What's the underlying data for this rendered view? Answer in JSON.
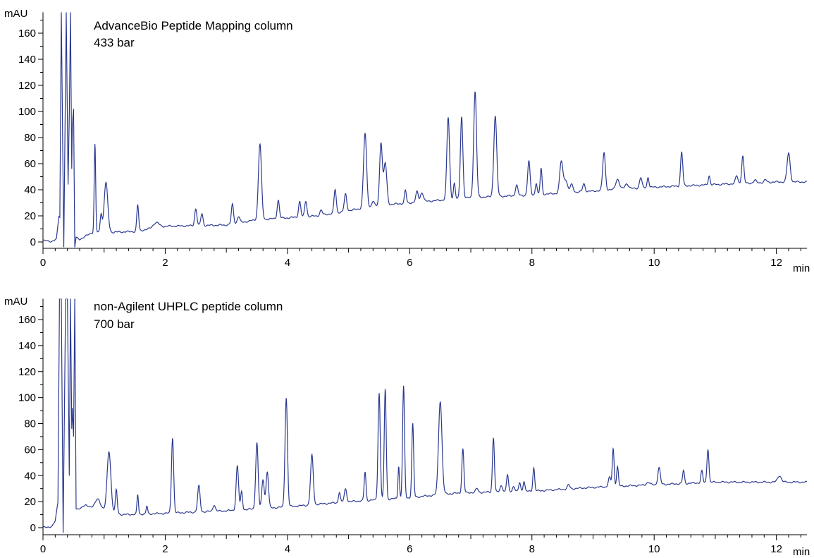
{
  "chart_data": [
    {
      "type": "line",
      "title": "AdvanceBio Peptide Mapping column",
      "subtitle": "433 bar",
      "xlabel": "min",
      "ylabel": "mAU",
      "xlim": [
        0,
        12.5
      ],
      "ylim": [
        -4,
        176
      ],
      "grid": false,
      "xticks": [
        0,
        2,
        4,
        6,
        8,
        10,
        12
      ],
      "xtick_labels": [
        "0",
        "2",
        "4",
        "6",
        "8",
        "10",
        "12"
      ],
      "yticks": [
        0,
        20,
        40,
        60,
        80,
        100,
        120,
        140,
        160
      ],
      "ytick_labels": [
        "0",
        "20",
        "40",
        "60",
        "80",
        "100",
        "120",
        "140",
        "160"
      ],
      "line_color": "#2b3990",
      "baseline": [
        [
          0,
          1
        ],
        [
          0.15,
          0.5
        ],
        [
          0.22,
          2
        ],
        [
          0.26,
          20
        ],
        [
          0.55,
          3
        ],
        [
          0.6,
          2
        ],
        [
          0.8,
          7
        ],
        [
          1.5,
          8
        ],
        [
          2,
          12
        ],
        [
          3,
          13
        ],
        [
          3.5,
          17
        ],
        [
          4.5,
          20
        ],
        [
          5,
          24
        ],
        [
          5.5,
          28
        ],
        [
          6,
          30
        ],
        [
          6.5,
          32
        ],
        [
          7,
          34
        ],
        [
          8,
          36
        ],
        [
          9,
          39
        ],
        [
          10,
          42
        ],
        [
          11,
          44
        ],
        [
          12,
          46
        ],
        [
          12.5,
          46
        ]
      ],
      "peaks": [
        [
          0.85,
          68,
          0.012
        ],
        [
          0.95,
          14,
          0.015
        ],
        [
          1.03,
          38,
          0.03
        ],
        [
          1.55,
          20,
          0.015
        ],
        [
          1.85,
          4,
          0.05
        ],
        [
          2.5,
          13,
          0.018
        ],
        [
          2.6,
          9,
          0.018
        ],
        [
          3.1,
          15,
          0.018
        ],
        [
          3.2,
          5,
          0.02
        ],
        [
          3.55,
          58,
          0.025
        ],
        [
          3.85,
          14,
          0.018
        ],
        [
          4.2,
          12,
          0.018
        ],
        [
          4.3,
          12,
          0.018
        ],
        [
          4.55,
          4,
          0.02
        ],
        [
          4.78,
          18,
          0.018
        ],
        [
          4.95,
          13,
          0.02
        ],
        [
          5.27,
          57,
          0.025
        ],
        [
          5.4,
          4,
          0.02
        ],
        [
          5.53,
          48,
          0.022
        ],
        [
          5.6,
          32,
          0.025
        ],
        [
          5.93,
          10,
          0.015
        ],
        [
          6.12,
          8,
          0.02
        ],
        [
          6.2,
          7,
          0.025
        ],
        [
          6.63,
          63,
          0.022
        ],
        [
          6.73,
          12,
          0.015
        ],
        [
          6.85,
          63,
          0.02
        ],
        [
          7.07,
          81,
          0.023
        ],
        [
          7.4,
          62,
          0.024
        ],
        [
          7.75,
          8,
          0.02
        ],
        [
          7.95,
          26,
          0.02
        ],
        [
          8.07,
          9,
          0.015
        ],
        [
          8.15,
          20,
          0.015
        ],
        [
          8.48,
          24,
          0.025
        ],
        [
          8.55,
          10,
          0.03
        ],
        [
          8.65,
          6,
          0.025
        ],
        [
          8.85,
          6,
          0.02
        ],
        [
          9.18,
          29,
          0.022
        ],
        [
          9.4,
          8,
          0.03
        ],
        [
          9.55,
          4,
          0.03
        ],
        [
          9.78,
          8,
          0.02
        ],
        [
          9.9,
          8,
          0.015
        ],
        [
          10.45,
          26,
          0.018
        ],
        [
          10.9,
          7,
          0.015
        ],
        [
          11.35,
          6,
          0.02
        ],
        [
          11.45,
          21,
          0.018
        ],
        [
          11.65,
          2,
          0.02
        ],
        [
          11.82,
          2,
          0.02
        ],
        [
          12.2,
          22,
          0.025
        ]
      ],
      "spikes": [
        [
          0.3,
          176
        ],
        [
          0.34,
          -4
        ],
        [
          0.38,
          176
        ],
        [
          0.41,
          44
        ],
        [
          0.43,
          96
        ],
        [
          0.45,
          176
        ],
        [
          0.47,
          56
        ],
        [
          0.48,
          90
        ],
        [
          0.5,
          102
        ],
        [
          0.52,
          -4
        ]
      ]
    },
    {
      "type": "line",
      "title": "non-Agilent UHPLC peptide column",
      "subtitle": "700 bar",
      "xlabel": "min",
      "ylabel": "mAU",
      "xlim": [
        0,
        12.5
      ],
      "ylim": [
        -4,
        176
      ],
      "grid": false,
      "xticks": [
        0,
        2,
        4,
        6,
        8,
        10,
        12
      ],
      "xtick_labels": [
        "0",
        "2",
        "4",
        "6",
        "8",
        "10",
        "12"
      ],
      "yticks": [
        0,
        20,
        40,
        60,
        80,
        100,
        120,
        140,
        160
      ],
      "ytick_labels": [
        "0",
        "20",
        "40",
        "60",
        "80",
        "100",
        "120",
        "140",
        "160"
      ],
      "line_color": "#2b3990",
      "baseline": [
        [
          0,
          0
        ],
        [
          0.15,
          1
        ],
        [
          0.2,
          5
        ],
        [
          0.26,
          25
        ],
        [
          0.55,
          14
        ],
        [
          0.7,
          17
        ],
        [
          0.9,
          15
        ],
        [
          1.3,
          10
        ],
        [
          2,
          11
        ],
        [
          3,
          13
        ],
        [
          4,
          16
        ],
        [
          5,
          20
        ],
        [
          6,
          23
        ],
        [
          6.6,
          26
        ],
        [
          7,
          27
        ],
        [
          8,
          28
        ],
        [
          9,
          31
        ],
        [
          10,
          33
        ],
        [
          11,
          35
        ],
        [
          12.5,
          35
        ]
      ],
      "peaks": [
        [
          0.9,
          7,
          0.04
        ],
        [
          1.08,
          46,
          0.03
        ],
        [
          1.2,
          18,
          0.015
        ],
        [
          1.55,
          15,
          0.012
        ],
        [
          1.7,
          6,
          0.012
        ],
        [
          2.12,
          58,
          0.018
        ],
        [
          2.55,
          20,
          0.02
        ],
        [
          2.8,
          5,
          0.02
        ],
        [
          3.18,
          34,
          0.02
        ],
        [
          3.25,
          14,
          0.015
        ],
        [
          3.5,
          51,
          0.02
        ],
        [
          3.6,
          22,
          0.02
        ],
        [
          3.67,
          28,
          0.02
        ],
        [
          3.98,
          84,
          0.02
        ],
        [
          4.4,
          38,
          0.022
        ],
        [
          4.85,
          8,
          0.015
        ],
        [
          4.95,
          10,
          0.02
        ],
        [
          5.27,
          22,
          0.015
        ],
        [
          5.5,
          82,
          0.018
        ],
        [
          5.6,
          85,
          0.016
        ],
        [
          5.82,
          25,
          0.012
        ],
        [
          5.9,
          86,
          0.016
        ],
        [
          6.05,
          57,
          0.015
        ],
        [
          6.5,
          72,
          0.028
        ],
        [
          6.87,
          34,
          0.016
        ],
        [
          7.1,
          3,
          0.02
        ],
        [
          7.37,
          42,
          0.016
        ],
        [
          7.5,
          5,
          0.02
        ],
        [
          7.6,
          13,
          0.016
        ],
        [
          7.7,
          4,
          0.02
        ],
        [
          7.8,
          7,
          0.015
        ],
        [
          7.87,
          8,
          0.015
        ],
        [
          8.03,
          18,
          0.015
        ],
        [
          8.6,
          3,
          0.02
        ],
        [
          9.27,
          7,
          0.02
        ],
        [
          9.33,
          29,
          0.015
        ],
        [
          9.4,
          15,
          0.015
        ],
        [
          9.9,
          2,
          0.03
        ],
        [
          10.08,
          13,
          0.02
        ],
        [
          10.48,
          10,
          0.015
        ],
        [
          10.78,
          9,
          0.015
        ],
        [
          10.88,
          26,
          0.016
        ],
        [
          12.05,
          5,
          0.03
        ]
      ],
      "spikes": [
        [
          0.27,
          176
        ],
        [
          0.3,
          176
        ],
        [
          0.33,
          -4
        ],
        [
          0.37,
          176
        ],
        [
          0.4,
          176
        ],
        [
          0.43,
          40
        ],
        [
          0.45,
          176
        ],
        [
          0.47,
          76
        ],
        [
          0.48,
          92
        ],
        [
          0.5,
          70
        ],
        [
          0.52,
          176
        ]
      ]
    }
  ]
}
